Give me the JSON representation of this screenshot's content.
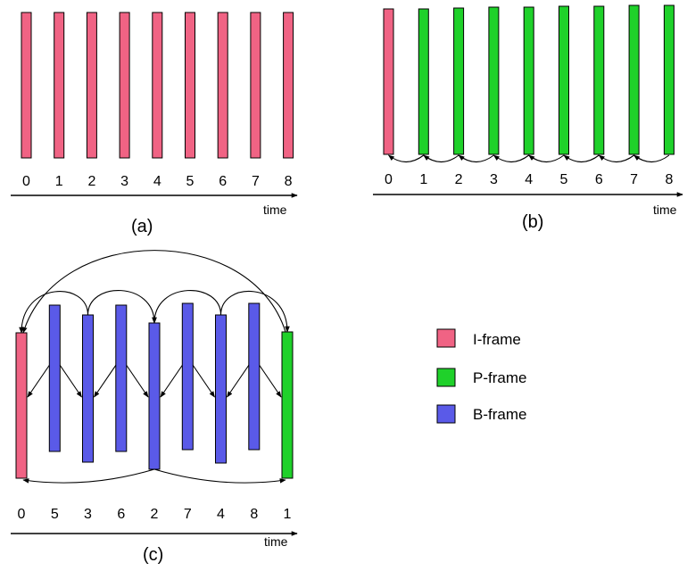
{
  "colors": {
    "i_frame": "#f06384",
    "p_frame": "#1fd12a",
    "b_frame": "#5a5ae8",
    "stroke": "#000000"
  },
  "axis_label": "time",
  "legend": [
    {
      "label": "I-frame",
      "type": "I"
    },
    {
      "label": "P-frame",
      "type": "P"
    },
    {
      "label": "B-frame",
      "type": "B"
    }
  ],
  "panels": [
    {
      "id": "a",
      "caption": "(a)",
      "frames": [
        {
          "type": "I",
          "label": "0"
        },
        {
          "type": "I",
          "label": "1"
        },
        {
          "type": "I",
          "label": "2"
        },
        {
          "type": "I",
          "label": "3"
        },
        {
          "type": "I",
          "label": "4"
        },
        {
          "type": "I",
          "label": "5"
        },
        {
          "type": "I",
          "label": "6"
        },
        {
          "type": "I",
          "label": "7"
        },
        {
          "type": "I",
          "label": "8"
        }
      ]
    },
    {
      "id": "b",
      "caption": "(b)",
      "frames": [
        {
          "type": "I",
          "label": "0"
        },
        {
          "type": "P",
          "label": "1"
        },
        {
          "type": "P",
          "label": "2"
        },
        {
          "type": "P",
          "label": "3"
        },
        {
          "type": "P",
          "label": "4"
        },
        {
          "type": "P",
          "label": "5"
        },
        {
          "type": "P",
          "label": "6"
        },
        {
          "type": "P",
          "label": "7"
        },
        {
          "type": "P",
          "label": "8"
        }
      ]
    },
    {
      "id": "c",
      "caption": "(c)",
      "frames": [
        {
          "type": "I",
          "label": "0"
        },
        {
          "type": "B",
          "label": "5"
        },
        {
          "type": "B",
          "label": "3"
        },
        {
          "type": "B",
          "label": "6"
        },
        {
          "type": "B",
          "label": "2"
        },
        {
          "type": "B",
          "label": "7"
        },
        {
          "type": "B",
          "label": "4"
        },
        {
          "type": "B",
          "label": "8"
        },
        {
          "type": "P",
          "label": "1"
        }
      ]
    }
  ]
}
